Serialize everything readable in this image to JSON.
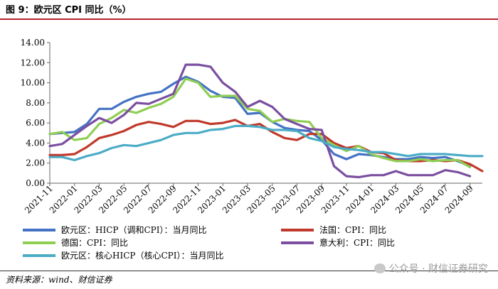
{
  "figure": {
    "title": "图 9：欧元区 CPI 同比（%）",
    "source": "资料来源：wind、财信证券",
    "watermark": "公众号 · 财信证券研究"
  },
  "chart_data": {
    "type": "line",
    "title": "",
    "xlabel": "",
    "ylabel": "",
    "ylim": [
      0,
      14
    ],
    "yticks": [
      "0.00",
      "2.00",
      "4.00",
      "6.00",
      "8.00",
      "10.00",
      "12.00",
      "14.00"
    ],
    "xtick_labels": [
      "2021-11",
      "2022-01",
      "2022-03",
      "2022-05",
      "2022-07",
      "2022-09",
      "2022-11",
      "2023-01",
      "2023-03",
      "2023-05",
      "2023-07",
      "2023-09",
      "2023-11",
      "2024-01",
      "2024-03",
      "2024-05",
      "2024-07",
      "2024-09"
    ],
    "legend": "bottom",
    "series": [
      {
        "name": "欧元区：HICP（调和CPI）：当月同比",
        "color": "#4472c4",
        "values": [
          4.9,
          5.0,
          5.1,
          5.9,
          7.4,
          7.4,
          8.1,
          8.6,
          8.9,
          9.1,
          9.9,
          10.6,
          10.1,
          9.2,
          8.6,
          8.5,
          6.9,
          7.0,
          6.1,
          5.5,
          5.3,
          5.2,
          4.3,
          2.9,
          2.4,
          2.9,
          2.8,
          2.6,
          2.4,
          2.4,
          2.6,
          2.5,
          2.6,
          2.2,
          1.7
        ]
      },
      {
        "name": "法国：CPI：同比",
        "color": "#c0392b",
        "values": [
          2.8,
          2.8,
          2.9,
          3.6,
          4.5,
          4.8,
          5.2,
          5.8,
          6.1,
          5.9,
          5.6,
          6.2,
          6.2,
          5.9,
          6.0,
          6.3,
          5.7,
          5.9,
          5.1,
          4.5,
          4.3,
          4.9,
          4.9,
          4.0,
          3.5,
          3.7,
          3.1,
          3.0,
          2.3,
          2.2,
          2.2,
          2.3,
          2.2,
          2.3,
          1.9,
          1.2
        ]
      },
      {
        "name": "德国：CPI：同比",
        "color": "#8fce53",
        "values": [
          4.9,
          5.1,
          4.3,
          4.5,
          5.9,
          6.5,
          7.3,
          7.0,
          7.5,
          7.9,
          8.6,
          10.4,
          10.0,
          8.6,
          8.7,
          8.7,
          7.4,
          7.2,
          6.1,
          6.4,
          6.2,
          6.1,
          4.5,
          3.8,
          3.2,
          3.7,
          2.9,
          2.5,
          2.2,
          2.2,
          2.4,
          2.2,
          2.3,
          2.3,
          1.6
        ]
      },
      {
        "name": "意大利：CPI：同比",
        "color": "#7b4fa0",
        "values": [
          3.7,
          3.9,
          4.8,
          5.7,
          6.5,
          6.0,
          6.8,
          8.0,
          7.9,
          8.4,
          8.9,
          11.8,
          11.8,
          11.6,
          10.0,
          9.1,
          7.6,
          8.2,
          7.6,
          6.4,
          5.9,
          5.4,
          5.3,
          1.7,
          0.7,
          0.6,
          0.8,
          0.8,
          1.2,
          0.8,
          0.8,
          0.8,
          1.3,
          1.1,
          0.7
        ]
      },
      {
        "name": "欧元区：核心HICP（核心CPI）：当月同比",
        "color": "#4bacc6",
        "values": [
          2.6,
          2.6,
          2.3,
          2.7,
          3.0,
          3.5,
          3.8,
          3.7,
          4.0,
          4.3,
          4.8,
          5.0,
          5.0,
          5.3,
          5.4,
          5.7,
          5.7,
          5.6,
          5.3,
          5.3,
          5.2,
          4.5,
          4.2,
          3.6,
          3.4,
          3.3,
          3.1,
          3.1,
          2.9,
          2.7,
          2.9,
          2.9,
          2.9,
          2.8,
          2.7,
          2.7
        ]
      }
    ]
  }
}
